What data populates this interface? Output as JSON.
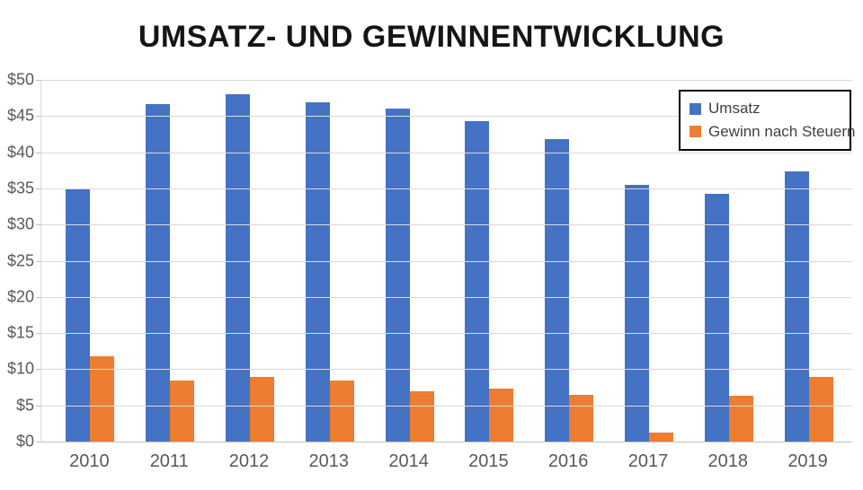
{
  "title": "UMSATZ- UND GEWINNENTWICKLUNG",
  "chart_data": {
    "type": "bar",
    "title": "UMSATZ- UND GEWINNENTWICKLUNG",
    "categories": [
      "2010",
      "2011",
      "2012",
      "2013",
      "2014",
      "2015",
      "2016",
      "2017",
      "2018",
      "2019"
    ],
    "series": [
      {
        "name": "Umsatz",
        "color": "#4472C4",
        "values": [
          35.0,
          46.6,
          48.0,
          46.9,
          46.0,
          44.3,
          41.8,
          35.5,
          34.3,
          37.3
        ]
      },
      {
        "name": "Gewinn nach Steuern",
        "color": "#ED7D31",
        "values": [
          11.8,
          8.5,
          8.9,
          8.5,
          7.0,
          7.3,
          6.5,
          1.2,
          6.3,
          8.9
        ]
      }
    ],
    "xlabel": "",
    "ylabel": "",
    "ylim": [
      0,
      50
    ],
    "ytick_step": 5,
    "ytick_labels_top_to_bottom": [
      "$50",
      "$45",
      "$40",
      "$35",
      "$30",
      "$25",
      "$20",
      "$15",
      "$10",
      "$5",
      "$0"
    ],
    "grid": true,
    "legend_position": "top-right"
  },
  "colors": {
    "series_umsatz": "#4472C4",
    "series_gewinn": "#ED7D31",
    "gridline": "#D9D9D9",
    "axis_line": "#BFBFBF",
    "axis_text": "#595959",
    "title_text": "#151515",
    "legend_border": "#000000",
    "legend_text": "#3F3F3F",
    "background": "#FFFFFF"
  }
}
